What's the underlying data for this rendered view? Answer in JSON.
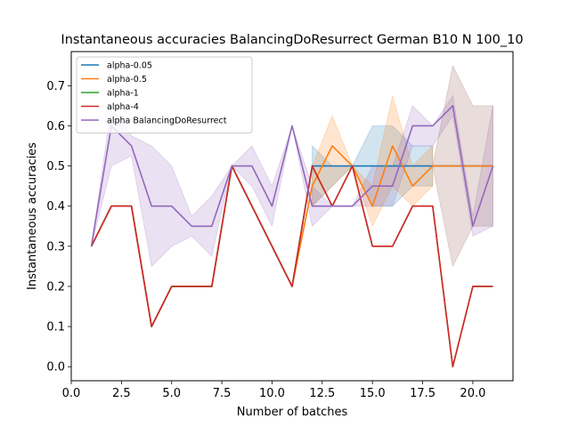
{
  "chart_data": {
    "type": "line",
    "title": "Instantaneous accuracies BalancingDoResurrect German B10 N 100_10",
    "xlabel": "Number of batches",
    "ylabel": "Instantaneous accuracies",
    "xlim": [
      0,
      22
    ],
    "ylim": [
      -0.035,
      0.785
    ],
    "xticks": [
      0.0,
      2.5,
      5.0,
      7.5,
      10.0,
      12.5,
      15.0,
      17.5,
      20.0
    ],
    "xtick_labels": [
      "0.0",
      "2.5",
      "5.0",
      "7.5",
      "10.0",
      "12.5",
      "15.0",
      "17.5",
      "20.0"
    ],
    "yticks": [
      0.0,
      0.1,
      0.2,
      0.3,
      0.4,
      0.5,
      0.6,
      0.7
    ],
    "ytick_labels": [
      "0.0",
      "0.1",
      "0.2",
      "0.3",
      "0.4",
      "0.5",
      "0.6",
      "0.7"
    ],
    "legend_position": "upper-left",
    "grid": false,
    "x": [
      1,
      2,
      3,
      4,
      5,
      6,
      7,
      8,
      9,
      10,
      11,
      12,
      13,
      14,
      15,
      16,
      17,
      18,
      19,
      20,
      21
    ],
    "series": [
      {
        "name": "alpha-0.05",
        "color": "#1f77b4",
        "values": [
          0.3,
          0.4,
          0.4,
          0.1,
          0.2,
          0.2,
          0.2,
          0.5,
          0.4,
          0.3,
          0.2,
          0.5,
          0.5,
          0.5,
          0.5,
          0.5,
          0.5,
          0.5,
          0.5,
          0.5,
          0.5
        ],
        "band_low": [
          null,
          null,
          null,
          null,
          null,
          null,
          null,
          null,
          null,
          null,
          null,
          0.4,
          0.45,
          0.5,
          0.4,
          0.4,
          0.45,
          0.45,
          null,
          null,
          null
        ],
        "band_high": [
          null,
          null,
          null,
          null,
          null,
          null,
          null,
          null,
          null,
          null,
          null,
          0.55,
          0.5,
          0.5,
          0.6,
          0.6,
          0.55,
          0.55,
          null,
          null,
          null
        ]
      },
      {
        "name": "alpha-0.5",
        "color": "#ff7f0e",
        "values": [
          0.3,
          0.4,
          0.4,
          0.1,
          0.2,
          0.2,
          0.2,
          0.5,
          0.4,
          0.3,
          0.2,
          0.45,
          0.55,
          0.5,
          0.4,
          0.55,
          0.45,
          0.5,
          0.5,
          0.5,
          0.5
        ],
        "band_low": [
          null,
          null,
          null,
          null,
          null,
          null,
          null,
          null,
          null,
          null,
          null,
          0.4,
          0.45,
          0.5,
          0.35,
          0.45,
          0.4,
          0.45,
          null,
          null,
          null
        ],
        "band_high": [
          null,
          null,
          null,
          null,
          null,
          null,
          null,
          null,
          null,
          null,
          null,
          0.5,
          0.625,
          0.5,
          0.45,
          0.675,
          0.5,
          0.55,
          null,
          null,
          null
        ]
      },
      {
        "name": "alpha-1",
        "color": "#2ca02c",
        "values": [
          0.3,
          0.4,
          0.4,
          0.1,
          0.2,
          0.2,
          0.2,
          0.5,
          0.4,
          0.3,
          0.2,
          0.5,
          0.4,
          0.5,
          0.3,
          0.3,
          0.4,
          0.4,
          0.0,
          0.2,
          0.2
        ]
      },
      {
        "name": "alpha-4",
        "color": "#d62728",
        "values": [
          0.3,
          0.4,
          0.4,
          0.1,
          0.2,
          0.2,
          0.2,
          0.5,
          0.4,
          0.3,
          0.2,
          0.5,
          0.4,
          0.5,
          0.3,
          0.3,
          0.4,
          0.4,
          0.0,
          0.2,
          0.2
        ]
      },
      {
        "name": "alpha BalancingDoResurrect",
        "color": "#9467bd",
        "values": [
          0.3,
          0.6,
          0.55,
          0.4,
          0.4,
          0.35,
          0.35,
          0.5,
          0.5,
          0.4,
          0.6,
          0.4,
          0.4,
          0.4,
          0.45,
          0.45,
          0.6,
          0.6,
          0.65,
          0.35,
          0.5
        ],
        "band_low": [
          0.3,
          0.5,
          0.525,
          0.25,
          0.3,
          0.325,
          0.275,
          0.5,
          0.45,
          0.35,
          0.6,
          0.35,
          0.4,
          0.4,
          0.4,
          0.4,
          0.55,
          0.55,
          0.625,
          0.325,
          0.35
        ],
        "band_high": [
          0.3,
          0.65,
          0.575,
          0.55,
          0.5,
          0.375,
          0.425,
          0.5,
          0.55,
          0.45,
          0.6,
          0.45,
          0.4,
          0.4,
          0.5,
          0.5,
          0.65,
          0.6,
          0.675,
          0.375,
          0.65
        ]
      }
    ],
    "extra_bands": [
      {
        "color": "#8c564b",
        "x": [
          18,
          19,
          20,
          21
        ],
        "low": [
          0.5,
          0.25,
          0.35,
          0.35
        ],
        "high": [
          0.5,
          0.75,
          0.65,
          0.65
        ]
      }
    ]
  }
}
